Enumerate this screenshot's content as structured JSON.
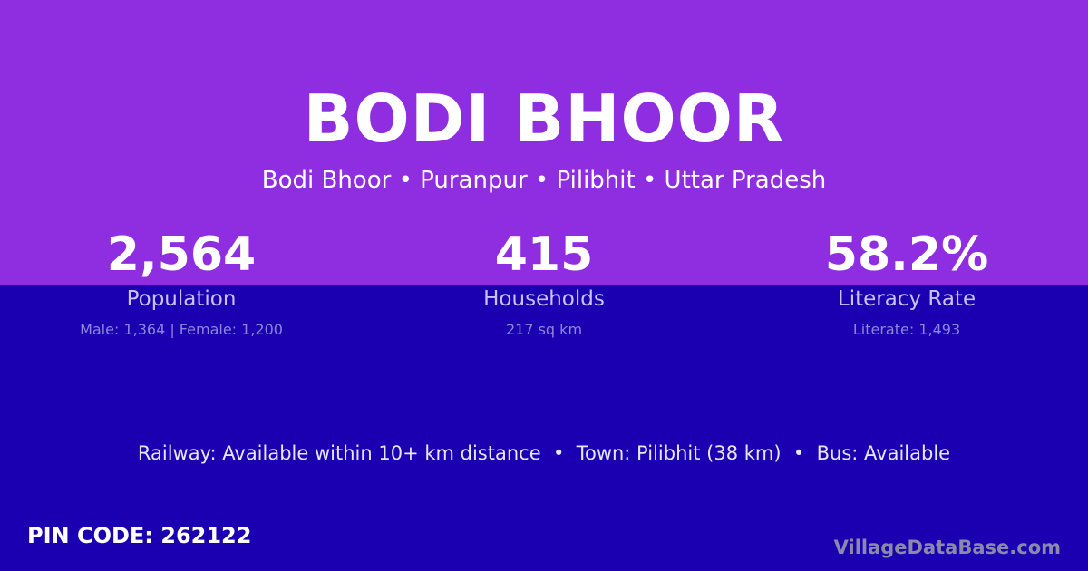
{
  "colors": {
    "top_band": "#8f2ee0",
    "bottom_band": "#1a00b0",
    "label": "#c9c4f5",
    "detail": "#8e85e0",
    "brand": "#8a8aa8"
  },
  "title": "BODI BHOOR",
  "subtitle": "Bodi Bhoor • Puranpur • Pilibhit • Uttar Pradesh",
  "stats": [
    {
      "value": "2,564",
      "label": "Population",
      "detail": "Male: 1,364 | Female: 1,200"
    },
    {
      "value": "415",
      "label": "Households",
      "detail": "217 sq km"
    },
    {
      "value": "58.2%",
      "label": "Literacy Rate",
      "detail": "Literate: 1,493"
    }
  ],
  "transport": "Railway: Available within 10+ km distance  •  Town: Pilibhit (38 km)  •  Bus: Available",
  "pin_code": "PIN CODE: 262122",
  "brand": "VillageDataBase.com"
}
